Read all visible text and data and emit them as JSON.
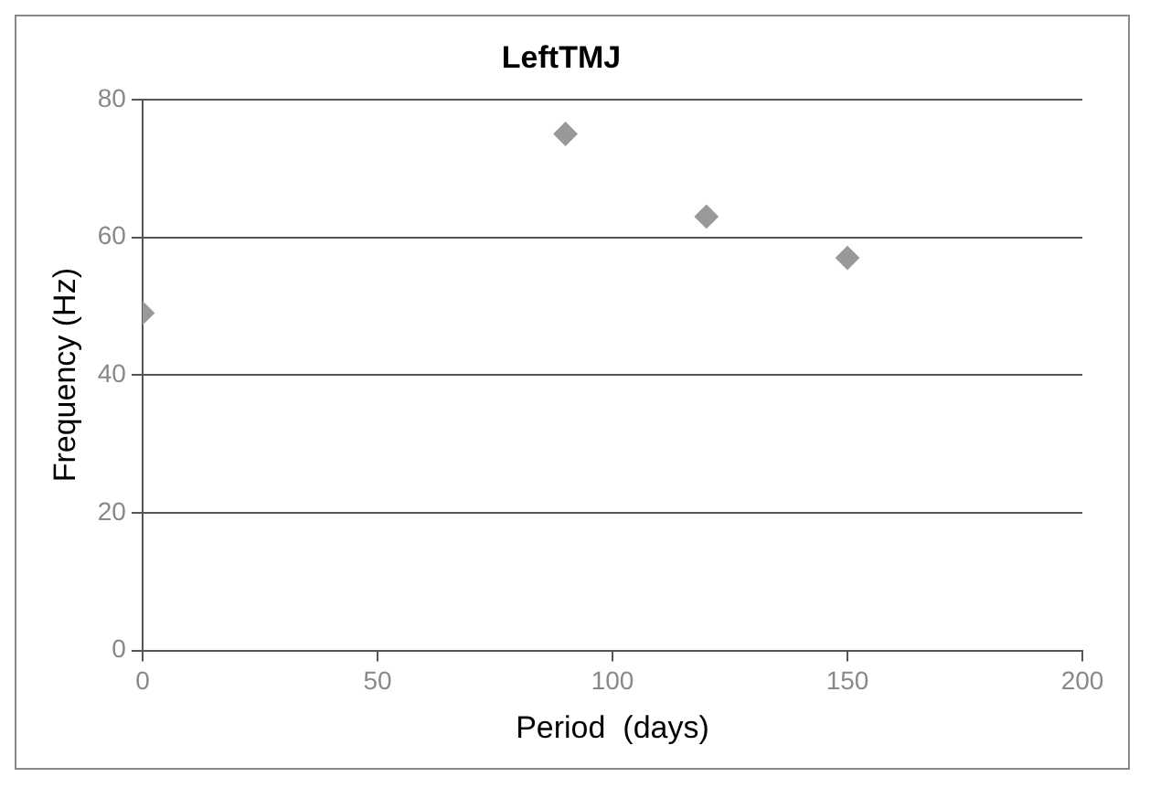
{
  "chart_data": {
    "type": "scatter",
    "title": "LeftTMJ",
    "xlabel": "Period  (days)",
    "ylabel": "Frequency (Hz)",
    "x": [
      0,
      90,
      120,
      150
    ],
    "values": [
      49,
      75,
      63,
      57
    ],
    "color": "#999999",
    "marker": "diamond",
    "xlim": [
      0,
      200
    ],
    "xticks": [
      0,
      50,
      100,
      150,
      200
    ],
    "ylim": [
      0,
      80
    ],
    "yticks": [
      0,
      20,
      40,
      60,
      80
    ],
    "grid": "y"
  }
}
